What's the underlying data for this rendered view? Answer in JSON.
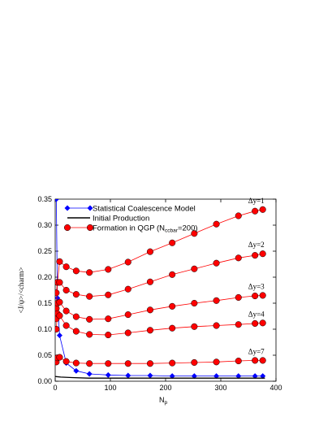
{
  "chart_data": {
    "type": "line",
    "title": "",
    "xlabel": "N",
    "xlabel_sub": "p",
    "ylabel": "<J/ψ>/<charm>",
    "xlim": [
      0,
      400
    ],
    "ylim": [
      0,
      0.35
    ],
    "xticks": [
      0,
      100,
      200,
      300,
      400
    ],
    "yticks": [
      0.0,
      0.05,
      0.1,
      0.15,
      0.2,
      0.25,
      0.3,
      0.35
    ],
    "ytick_labels": [
      "0.00",
      "0.05",
      "0.10",
      "0.15",
      "0.20",
      "0.25",
      "0.30",
      "0.35"
    ],
    "grid": false,
    "legend_position": "top-left",
    "legend": [
      {
        "series": "statistical",
        "label": "Statistical Coalescence Model"
      },
      {
        "series": "initial",
        "label": "Initial Production"
      },
      {
        "series": "qgp",
        "label_main": "Formation in QGP (N",
        "label_sub": "ccbar",
        "label_tail": "=200)"
      }
    ],
    "series": [
      {
        "key": "statistical",
        "color": "#0000ff",
        "marker": "diamond",
        "x": [
          2,
          4,
          8,
          20,
          38,
          62,
          96,
          132,
          172,
          212,
          252,
          292,
          332,
          362,
          376
        ],
        "y": [
          0.35,
          0.16,
          0.088,
          0.035,
          0.02,
          0.014,
          0.012,
          0.011,
          0.011,
          0.01,
          0.01,
          0.01,
          0.01,
          0.01,
          0.01
        ]
      },
      {
        "key": "initial",
        "color": "#000000",
        "marker": "none",
        "x": [
          0,
          10,
          30,
          60,
          100,
          150,
          200,
          250,
          300,
          350,
          380
        ],
        "y": [
          0.009,
          0.008,
          0.007,
          0.006,
          0.006,
          0.006,
          0.006,
          0.006,
          0.006,
          0.006,
          0.006
        ]
      },
      {
        "key": "qgp_dy1",
        "label": "Δy=1",
        "color": "#ff0000",
        "marker": "circle",
        "x": [
          2,
          4,
          8,
          20,
          38,
          62,
          96,
          132,
          172,
          212,
          252,
          292,
          332,
          362,
          376
        ],
        "y": [
          0.17,
          0.19,
          0.23,
          0.22,
          0.212,
          0.209,
          0.215,
          0.229,
          0.249,
          0.266,
          0.284,
          0.302,
          0.318,
          0.327,
          0.33
        ]
      },
      {
        "key": "qgp_dy2",
        "label": "Δy=2",
        "color": "#ff0000",
        "marker": "circle",
        "x": [
          2,
          4,
          8,
          20,
          38,
          62,
          96,
          132,
          172,
          212,
          252,
          292,
          332,
          362,
          376
        ],
        "y": [
          0.14,
          0.19,
          0.19,
          0.175,
          0.167,
          0.163,
          0.166,
          0.177,
          0.191,
          0.205,
          0.216,
          0.227,
          0.237,
          0.242,
          0.245
        ]
      },
      {
        "key": "qgp_dy3",
        "label": "Δy=3",
        "color": "#ff0000",
        "marker": "circle",
        "x": [
          2,
          4,
          8,
          20,
          38,
          62,
          96,
          132,
          172,
          212,
          252,
          292,
          332,
          362,
          376
        ],
        "y": [
          0.12,
          0.15,
          0.152,
          0.135,
          0.124,
          0.119,
          0.12,
          0.128,
          0.137,
          0.144,
          0.15,
          0.155,
          0.161,
          0.164,
          0.165
        ]
      },
      {
        "key": "qgp_dy4",
        "label": "Δy=4",
        "color": "#ff0000",
        "marker": "circle",
        "x": [
          2,
          4,
          8,
          20,
          38,
          62,
          96,
          132,
          172,
          212,
          252,
          292,
          332,
          362,
          376
        ],
        "y": [
          0.1,
          0.13,
          0.126,
          0.107,
          0.096,
          0.09,
          0.089,
          0.093,
          0.098,
          0.102,
          0.105,
          0.107,
          0.109,
          0.111,
          0.112
        ]
      },
      {
        "key": "qgp_dy7",
        "label": "Δy=7",
        "color": "#ff0000",
        "marker": "circle",
        "x": [
          2,
          4,
          8,
          20,
          38,
          62,
          96,
          132,
          172,
          212,
          252,
          292,
          332,
          362,
          376
        ],
        "y": [
          0.037,
          0.045,
          0.046,
          0.038,
          0.035,
          0.034,
          0.034,
          0.034,
          0.034,
          0.035,
          0.036,
          0.037,
          0.039,
          0.04,
          0.04
        ]
      }
    ]
  }
}
